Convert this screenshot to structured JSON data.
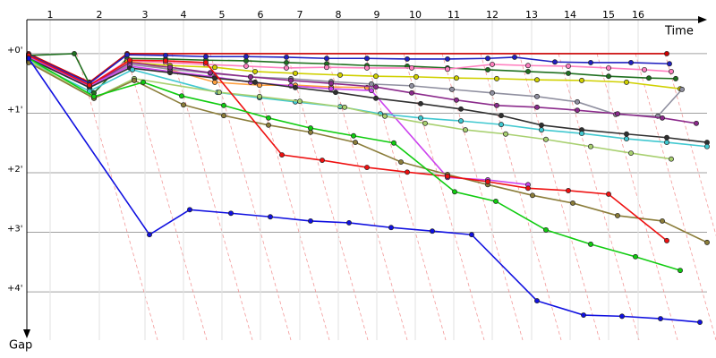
{
  "chart_data": {
    "type": "line",
    "xlabel": "Time",
    "ylabel": "Gap",
    "xlim": [
      0,
      760
    ],
    "ylim": [
      -0.57,
      4.81
    ],
    "xticks": [
      {
        "value": 26,
        "label": "1"
      },
      {
        "value": 81,
        "label": "2"
      },
      {
        "value": 132,
        "label": "3"
      },
      {
        "value": 175,
        "label": "4"
      },
      {
        "value": 218,
        "label": "5"
      },
      {
        "value": 261,
        "label": "6"
      },
      {
        "value": 305,
        "label": "7"
      },
      {
        "value": 348,
        "label": "8"
      },
      {
        "value": 391,
        "label": "9"
      },
      {
        "value": 434,
        "label": "10"
      },
      {
        "value": 477,
        "label": "11"
      },
      {
        "value": 520,
        "label": "12"
      },
      {
        "value": 564,
        "label": "13"
      },
      {
        "value": 607,
        "label": "14"
      },
      {
        "value": 650,
        "label": "15"
      },
      {
        "value": 683,
        "label": "16"
      }
    ],
    "yticks": [
      {
        "value": 0,
        "label": "+0'"
      },
      {
        "value": 1,
        "label": "+1'"
      },
      {
        "value": 2,
        "label": "+2'"
      },
      {
        "value": 3,
        "label": "+3'"
      },
      {
        "value": 4,
        "label": "+4'"
      }
    ],
    "grid": true,
    "series": [
      {
        "color": "#cc0000",
        "x": [
          2,
          70,
          112,
          715
        ],
        "values": [
          0,
          0.48,
          0,
          0
        ]
      },
      {
        "color": "#207020",
        "x": [
          2,
          53,
          75,
          112,
          155,
          200,
          245,
          290,
          335,
          380,
          425,
          470,
          515,
          560,
          605,
          650,
          695,
          725
        ],
        "values": [
          0.03,
          0,
          0.66,
          0.08,
          0.09,
          0.11,
          0.12,
          0.15,
          0.17,
          0.2,
          0.21,
          0.24,
          0.27,
          0.3,
          0.33,
          0.38,
          0.41,
          0.42
        ]
      },
      {
        "color": "#2020c0",
        "x": [
          2,
          70,
          112,
          155,
          200,
          245,
          290,
          335,
          380,
          425,
          470,
          515,
          545,
          590,
          630,
          675,
          718
        ],
        "values": [
          0.02,
          0.5,
          0.02,
          0.03,
          0.05,
          0.05,
          0.06,
          0.08,
          0.08,
          0.09,
          0.09,
          0.08,
          0.06,
          0.14,
          0.15,
          0.15,
          0.17
        ]
      },
      {
        "color": "#ff80c0",
        "x": [
          2,
          70,
          112,
          155,
          200,
          245,
          290,
          335,
          380,
          430,
          470,
          520,
          560,
          605,
          650,
          690,
          720
        ],
        "values": [
          0.05,
          0.53,
          0.12,
          0.15,
          0.18,
          0.21,
          0.24,
          0.23,
          0.24,
          0.24,
          0.26,
          0.18,
          0.2,
          0.21,
          0.24,
          0.27,
          0.3
        ]
      },
      {
        "color": "#d0d000",
        "x": [
          2,
          70,
          112,
          160,
          210,
          255,
          300,
          350,
          390,
          435,
          480,
          525,
          570,
          620,
          670,
          730
        ],
        "values": [
          0.05,
          0.56,
          0.14,
          0.2,
          0.23,
          0.3,
          0.33,
          0.36,
          0.38,
          0.39,
          0.41,
          0.42,
          0.44,
          0.45,
          0.48,
          0.59
        ]
      },
      {
        "color": "#ffa040",
        "x": [
          2,
          70,
          115,
          160,
          210,
          260,
          300,
          340,
          380
        ],
        "values": [
          0.05,
          0.56,
          0.12,
          0.27,
          0.48,
          0.53,
          0.53,
          0.56,
          0.57
        ]
      },
      {
        "color": "#9090a0",
        "x": [
          2,
          70,
          115,
          160,
          205,
          250,
          295,
          340,
          385,
          430,
          475,
          520,
          570,
          615,
          658,
          705,
          732
        ],
        "values": [
          0.08,
          0.56,
          0.18,
          0.26,
          0.33,
          0.39,
          0.42,
          0.47,
          0.51,
          0.54,
          0.6,
          0.66,
          0.72,
          0.81,
          1.02,
          1.05,
          0.6
        ]
      },
      {
        "color": "#8b2a8b",
        "x": [
          2,
          70,
          115,
          160,
          205,
          250,
          295,
          340,
          390,
          430,
          480,
          525,
          570,
          615,
          660,
          710,
          748
        ],
        "values": [
          0.06,
          0.54,
          0.15,
          0.23,
          0.32,
          0.39,
          0.45,
          0.5,
          0.56,
          0.66,
          0.78,
          0.87,
          0.9,
          0.95,
          1.01,
          1.08,
          1.17
        ]
      },
      {
        "color": "#cc44ee",
        "x": [
          2,
          70,
          115,
          160,
          210,
          250,
          295,
          340,
          385,
          470,
          515,
          560
        ],
        "values": [
          0.06,
          0.54,
          0.21,
          0.3,
          0.39,
          0.48,
          0.54,
          0.59,
          0.62,
          2.08,
          2.12,
          2.2
        ]
      },
      {
        "color": "#303030",
        "x": [
          2,
          70,
          115,
          160,
          210,
          255,
          300,
          345,
          390,
          440,
          485,
          530,
          575,
          620,
          670,
          715,
          760
        ],
        "values": [
          0.08,
          0.57,
          0.24,
          0.32,
          0.41,
          0.48,
          0.57,
          0.65,
          0.75,
          0.84,
          0.93,
          1.04,
          1.2,
          1.28,
          1.35,
          1.41,
          1.49
        ]
      },
      {
        "color": "#40c8d0",
        "x": [
          2,
          70,
          118,
          213,
          260,
          300,
          350,
          395,
          440,
          485,
          530,
          575,
          620,
          670,
          715,
          760
        ],
        "values": [
          0.12,
          0.63,
          0.27,
          0.65,
          0.74,
          0.81,
          0.89,
          1.01,
          1.08,
          1.13,
          1.19,
          1.28,
          1.34,
          1.43,
          1.49,
          1.56
        ]
      },
      {
        "color": "#a8d070",
        "x": [
          2,
          75,
          120,
          215,
          260,
          305,
          355,
          400,
          445,
          490,
          535,
          580,
          630,
          675,
          720
        ],
        "values": [
          0.12,
          0.75,
          0.42,
          0.65,
          0.72,
          0.8,
          0.9,
          1.05,
          1.17,
          1.28,
          1.35,
          1.44,
          1.56,
          1.67,
          1.77
        ]
      },
      {
        "color": "#8b7d3a",
        "x": [
          2,
          75,
          120,
          175,
          220,
          270,
          317,
          367,
          418,
          470,
          515,
          565,
          610,
          660,
          710,
          760
        ],
        "values": [
          0.15,
          0.75,
          0.45,
          0.86,
          1.04,
          1.2,
          1.32,
          1.49,
          1.82,
          2.03,
          2.2,
          2.38,
          2.51,
          2.72,
          2.81,
          3.17
        ]
      },
      {
        "color": "#ee1010",
        "x": [
          2,
          70,
          115,
          155,
          200,
          285,
          330,
          380,
          425,
          470,
          515,
          560,
          605,
          650,
          715
        ],
        "values": [
          0.03,
          0.53,
          0.11,
          0.12,
          0.15,
          1.7,
          1.79,
          1.91,
          1.99,
          2.06,
          2.15,
          2.26,
          2.3,
          2.36,
          3.14
        ]
      },
      {
        "color": "#10cc10",
        "x": [
          2,
          75,
          130,
          173,
          220,
          270,
          317,
          365,
          410,
          478,
          524,
          580,
          630,
          680,
          730
        ],
        "values": [
          0.08,
          0.72,
          0.48,
          0.71,
          0.87,
          1.08,
          1.25,
          1.38,
          1.5,
          2.32,
          2.48,
          2.96,
          3.2,
          3.41,
          3.64
        ]
      },
      {
        "color": "#1010e0",
        "x": [
          2,
          137,
          182,
          228,
          272,
          317,
          360,
          407,
          453,
          497,
          570,
          622,
          665,
          708,
          752
        ],
        "values": [
          0.08,
          3.04,
          2.62,
          2.68,
          2.74,
          2.81,
          2.84,
          2.92,
          2.98,
          3.04,
          4.15,
          4.39,
          4.41,
          4.45,
          4.51
        ]
      }
    ]
  }
}
